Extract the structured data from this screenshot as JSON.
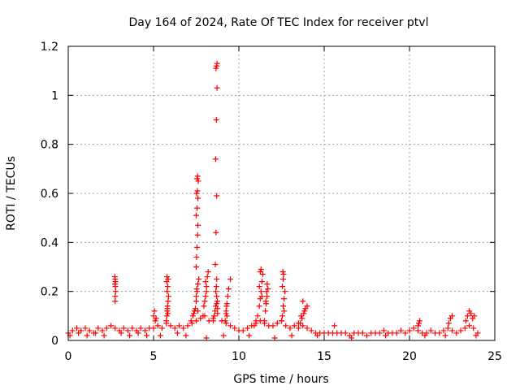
{
  "chart_data": {
    "type": "scatter",
    "title": "Day 164 of 2024, Rate Of TEC Index for receiver ptvl",
    "xlabel": "GPS time / hours",
    "ylabel": "ROTI / TECUs",
    "xlim": [
      0,
      25
    ],
    "ylim": [
      0,
      1.2
    ],
    "x_ticks": [
      0,
      5,
      10,
      15,
      20,
      25
    ],
    "x_tick_labels": [
      "0",
      "5",
      "10",
      "15",
      "20",
      "25"
    ],
    "y_ticks": [
      0,
      0.2,
      0.4,
      0.6,
      0.8,
      1.0,
      1.2
    ],
    "y_tick_labels": [
      "0",
      "0.2",
      "0.4",
      "0.6",
      "0.8",
      "1",
      "1.2"
    ],
    "grid": true,
    "marker": "+",
    "color": "#ff0000",
    "series": [
      {
        "name": "ROTI",
        "x": [
          0.0,
          0.25,
          0.5,
          0.75,
          1.0,
          1.25,
          1.5,
          1.75,
          2.0,
          2.25,
          2.5,
          2.75,
          3.0,
          3.25,
          3.5,
          3.75,
          4.0,
          4.25,
          4.5,
          4.75,
          5.0,
          5.25,
          5.5,
          5.75,
          6.0,
          6.25,
          6.5,
          6.75,
          7.0,
          7.25,
          7.5,
          7.75,
          8.0,
          8.25,
          8.5,
          8.75,
          9.0,
          9.25,
          9.5,
          9.75,
          10.0,
          10.25,
          10.5,
          10.75,
          11.0,
          11.25,
          11.5,
          11.75,
          12.0,
          12.25,
          12.5,
          12.75,
          13.0,
          13.25,
          13.5,
          13.75,
          14.0,
          14.25,
          14.5,
          14.75,
          15.0,
          15.25,
          15.5,
          15.75,
          16.0,
          16.25,
          16.5,
          16.75,
          17.0,
          17.25,
          17.5,
          17.75,
          18.0,
          18.25,
          18.5,
          18.75,
          19.0,
          19.25,
          19.5,
          19.75,
          20.0,
          20.25,
          20.5,
          20.75,
          21.0,
          21.25,
          21.5,
          21.75,
          22.0,
          22.25,
          22.5,
          22.75,
          23.0,
          23.25,
          23.5,
          23.75,
          24.0,
          0.1,
          0.6,
          1.1,
          1.6,
          2.1,
          3.1,
          3.6,
          4.1,
          4.6,
          5.4,
          6.4,
          6.9,
          8.1,
          9.1,
          10.6,
          12.1,
          13.1,
          14.6,
          16.6,
          18.6,
          20.9,
          22.1,
          23.9,
          2.75,
          2.75,
          2.78,
          2.76,
          2.74,
          2.77,
          2.75,
          2.73,
          5.0,
          5.05,
          5.1,
          5.15,
          5.75,
          5.78,
          5.8,
          5.82,
          5.85,
          5.88,
          5.8,
          5.83,
          5.77,
          5.86,
          5.79,
          5.84,
          5.81,
          7.2,
          7.3,
          7.35,
          7.4,
          7.45,
          7.5,
          7.55,
          7.6,
          7.65,
          7.5,
          7.52,
          7.55,
          7.58,
          7.6,
          7.5,
          7.55,
          7.6,
          7.52,
          7.57,
          7.62,
          7.55,
          7.58,
          7.6,
          7.5,
          7.53,
          7.9,
          7.95,
          8.0,
          8.05,
          8.1,
          8.15,
          8.2,
          8.05,
          8.1,
          8.5,
          8.55,
          8.6,
          8.65,
          8.7,
          8.75,
          8.62,
          8.66,
          8.7,
          8.64,
          8.68,
          8.72,
          8.66,
          8.7,
          8.72,
          8.68,
          8.7,
          8.74,
          8.65,
          8.7,
          9.2,
          9.25,
          9.3,
          9.35,
          9.4,
          9.5,
          9.25,
          9.3,
          9.28,
          10.9,
          11.0,
          11.1,
          11.2,
          11.25,
          11.3,
          11.35,
          11.4,
          11.25,
          11.3,
          11.2,
          11.35,
          11.5,
          11.55,
          11.6,
          11.65,
          11.7,
          11.58,
          11.62,
          11.66,
          12.5,
          12.55,
          12.6,
          12.65,
          12.7,
          12.55,
          12.6,
          12.62,
          12.58,
          12.65,
          13.5,
          13.6,
          13.7,
          13.8,
          13.9,
          14.0,
          13.75,
          13.85,
          13.65,
          15.6,
          20.5,
          20.55,
          20.6,
          22.3,
          22.4,
          22.5,
          23.3,
          23.4,
          23.5,
          23.6,
          23.7,
          23.8
        ],
        "y": [
          0.03,
          0.04,
          0.05,
          0.04,
          0.05,
          0.04,
          0.03,
          0.05,
          0.04,
          0.05,
          0.06,
          0.05,
          0.04,
          0.05,
          0.04,
          0.05,
          0.04,
          0.05,
          0.04,
          0.05,
          0.05,
          0.06,
          0.05,
          0.07,
          0.06,
          0.05,
          0.06,
          0.05,
          0.06,
          0.07,
          0.08,
          0.09,
          0.1,
          0.08,
          0.09,
          0.11,
          0.08,
          0.07,
          0.06,
          0.05,
          0.04,
          0.04,
          0.05,
          0.06,
          0.07,
          0.08,
          0.07,
          0.06,
          0.06,
          0.07,
          0.08,
          0.06,
          0.05,
          0.06,
          0.07,
          0.06,
          0.05,
          0.04,
          0.03,
          0.03,
          0.03,
          0.03,
          0.03,
          0.03,
          0.03,
          0.03,
          0.02,
          0.03,
          0.03,
          0.03,
          0.02,
          0.03,
          0.03,
          0.03,
          0.04,
          0.03,
          0.03,
          0.03,
          0.04,
          0.03,
          0.04,
          0.05,
          0.04,
          0.03,
          0.03,
          0.04,
          0.03,
          0.03,
          0.04,
          0.05,
          0.04,
          0.03,
          0.04,
          0.05,
          0.06,
          0.05,
          0.03,
          0.02,
          0.03,
          0.02,
          0.03,
          0.02,
          0.03,
          0.02,
          0.03,
          0.02,
          0.02,
          0.03,
          0.02,
          0.01,
          0.02,
          0.02,
          0.01,
          0.02,
          0.02,
          0.01,
          0.02,
          0.02,
          0.02,
          0.02,
          0.16,
          0.18,
          0.2,
          0.22,
          0.23,
          0.24,
          0.25,
          0.26,
          0.1,
          0.12,
          0.08,
          0.09,
          0.08,
          0.1,
          0.12,
          0.14,
          0.16,
          0.18,
          0.2,
          0.22,
          0.24,
          0.25,
          0.26,
          0.11,
          0.13,
          0.08,
          0.1,
          0.11,
          0.12,
          0.13,
          0.18,
          0.2,
          0.23,
          0.25,
          0.3,
          0.34,
          0.38,
          0.43,
          0.47,
          0.51,
          0.54,
          0.58,
          0.6,
          0.61,
          0.65,
          0.66,
          0.67,
          0.12,
          0.16,
          0.21,
          0.1,
          0.14,
          0.16,
          0.18,
          0.22,
          0.26,
          0.28,
          0.24,
          0.2,
          0.08,
          0.1,
          0.12,
          0.14,
          0.15,
          0.13,
          0.31,
          0.44,
          0.59,
          0.74,
          0.9,
          1.03,
          1.11,
          1.12,
          1.13,
          0.22,
          0.18,
          0.16,
          0.2,
          0.25,
          0.08,
          0.11,
          0.15,
          0.18,
          0.21,
          0.25,
          0.12,
          0.1,
          0.14,
          0.06,
          0.08,
          0.1,
          0.14,
          0.17,
          0.2,
          0.24,
          0.27,
          0.28,
          0.29,
          0.22,
          0.18,
          0.08,
          0.12,
          0.15,
          0.18,
          0.21,
          0.16,
          0.2,
          0.23,
          0.08,
          0.1,
          0.14,
          0.17,
          0.2,
          0.22,
          0.25,
          0.27,
          0.28,
          0.12,
          0.05,
          0.07,
          0.09,
          0.11,
          0.13,
          0.14,
          0.16,
          0.12,
          0.1,
          0.06,
          0.06,
          0.07,
          0.08,
          0.07,
          0.09,
          0.1,
          0.08,
          0.1,
          0.12,
          0.11,
          0.09,
          0.1
        ]
      }
    ]
  }
}
